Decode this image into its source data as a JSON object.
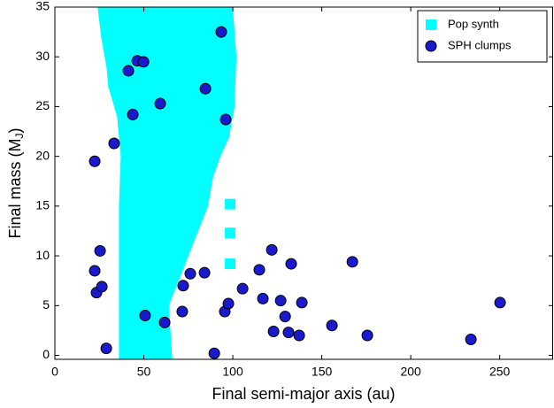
{
  "chart_data": {
    "type": "scatter",
    "xlabel": "Final semi-major axis (au)",
    "ylabel_parts": [
      "Final mass (M",
      "J",
      ")"
    ],
    "xlim": [
      0,
      280
    ],
    "ylim": [
      -0.4,
      35
    ],
    "xticks": [
      0,
      50,
      100,
      150,
      200,
      250
    ],
    "yticks": [
      0,
      5,
      10,
      15,
      20,
      25,
      30,
      35
    ],
    "legend": "upper right",
    "series": [
      {
        "name": "Pop synth",
        "color": "#00ffff",
        "marker": "square",
        "x": [
          37,
          37,
          38,
          36,
          31,
          30,
          27,
          25,
          99,
          101,
          100,
          97,
          92,
          88,
          85,
          74,
          63,
          65,
          null,
          98.5,
          null,
          98.5,
          null,
          98.5
        ],
        "values": [
          -0.3,
          15,
          20,
          24,
          27,
          29,
          32,
          35,
          35,
          30,
          25,
          22,
          20,
          18,
          15,
          10,
          5,
          -0.3,
          null,
          15.2,
          null,
          12.3,
          null,
          9.2
        ]
      },
      {
        "name": "SPH clumps",
        "color": "#1a1acc",
        "marker": "circle",
        "x": [
          22.4,
          22.4,
          23.4,
          25.4,
          26.4,
          28.9,
          33.3,
          41.3,
          43.8,
          46.3,
          49.8,
          50.7,
          59.2,
          61.7,
          84.6,
          93.5,
          96,
          72.1,
          76.1,
          71.6,
          84.1,
          89.6,
          95.5,
          97.5,
          105.5,
          114.9,
          116.9,
          121.9,
          122.9,
          126.9,
          129.4,
          132.8,
          131.3,
          138.8,
          137.3,
          155.7,
          167.2,
          175.6,
          233.8,
          250.2
        ],
        "values": [
          19.5,
          8.5,
          6.3,
          10.5,
          6.9,
          0.7,
          21.3,
          28.6,
          24.2,
          29.6,
          29.5,
          4.0,
          25.3,
          3.3,
          26.8,
          32.5,
          23.7,
          7.0,
          8.2,
          4.4,
          8.3,
          0.2,
          4.4,
          5.2,
          6.7,
          8.6,
          5.7,
          10.6,
          2.4,
          5.5,
          3.9,
          9.2,
          2.3,
          5.3,
          2.0,
          3.0,
          9.4,
          2.0,
          1.6,
          5.3
        ]
      }
    ]
  }
}
